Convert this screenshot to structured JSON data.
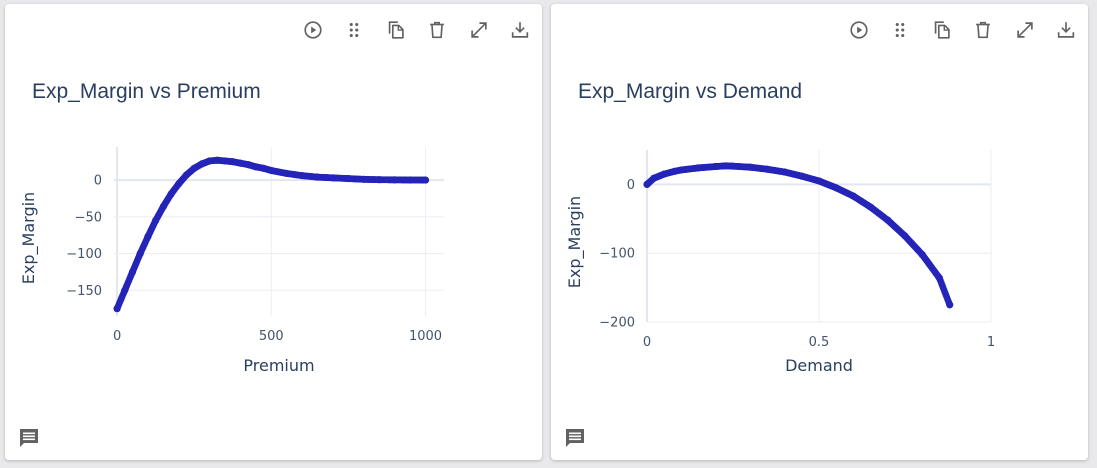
{
  "toolbar_icons": [
    "run-icon",
    "drag-handle-icon",
    "copy-icon",
    "delete-icon",
    "expand-icon",
    "download-icon"
  ],
  "colors": {
    "series": "#2424b8",
    "grid": "#ebeef5",
    "zeroline": "#e2e6f0",
    "title": "#2a3f5f",
    "icon": "#616161"
  },
  "cards": [
    {
      "title": "Exp_Margin vs Premium",
      "chart_data": {
        "type": "scatter",
        "xlabel": "Premium",
        "ylabel": "Exp_Margin",
        "xlim": [
          -10,
          1060
        ],
        "ylim": [
          -185,
          45
        ],
        "x_ticks": [
          0,
          500,
          1000
        ],
        "y_ticks": [
          0,
          -50,
          -100,
          -150
        ],
        "x_tick_labels": [
          "0",
          "500",
          "1000"
        ],
        "y_tick_labels": [
          "0",
          "−50",
          "−100",
          "−150"
        ],
        "grid": true,
        "legend": "none",
        "x": [
          0,
          25,
          50,
          75,
          100,
          125,
          150,
          175,
          200,
          225,
          250,
          275,
          300,
          325,
          350,
          375,
          400,
          425,
          450,
          475,
          500,
          550,
          600,
          650,
          700,
          750,
          800,
          850,
          900,
          950,
          1000
        ],
        "y": [
          -175,
          -150,
          -125,
          -100,
          -77,
          -55,
          -36,
          -19,
          -5,
          7,
          16,
          22,
          26,
          27,
          26,
          25,
          23,
          21,
          18,
          16,
          13,
          9,
          6,
          4,
          3,
          2,
          1,
          0.5,
          0.3,
          0.1,
          0
        ]
      }
    },
    {
      "title": "Exp_Margin vs Demand",
      "chart_data": {
        "type": "scatter",
        "xlabel": "Demand",
        "ylabel": "Exp_Margin",
        "xlim": [
          0,
          1
        ],
        "ylim": [
          -200,
          50
        ],
        "x_ticks": [
          0,
          0.5,
          1
        ],
        "y_ticks": [
          0,
          -100,
          -200
        ],
        "x_tick_labels": [
          "0",
          "0.5",
          "1"
        ],
        "y_tick_labels": [
          "0",
          "−100",
          "−200"
        ],
        "grid": true,
        "legend": "none",
        "x": [
          0,
          0.02,
          0.05,
          0.08,
          0.1,
          0.15,
          0.2,
          0.23,
          0.25,
          0.3,
          0.35,
          0.4,
          0.45,
          0.5,
          0.55,
          0.6,
          0.65,
          0.7,
          0.75,
          0.8,
          0.85,
          0.88
        ],
        "y": [
          0,
          9,
          15,
          19,
          21,
          24,
          26,
          27,
          26.5,
          25,
          22,
          18,
          12,
          5,
          -5,
          -17,
          -33,
          -52,
          -75,
          -102,
          -136,
          -175
        ]
      }
    }
  ]
}
